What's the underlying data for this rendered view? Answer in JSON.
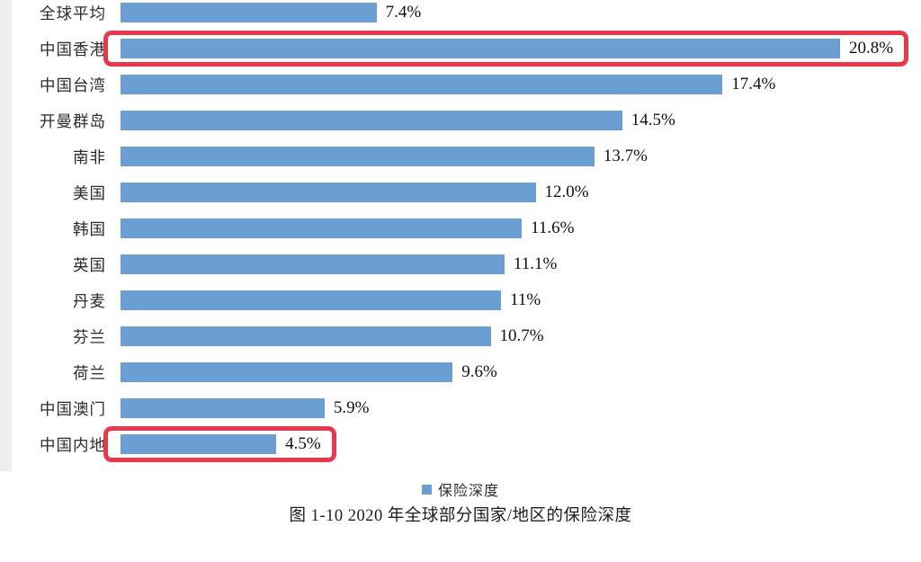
{
  "chart_data": {
    "type": "bar",
    "orientation": "horizontal",
    "title": "图 1-10 2020 年全球部分国家/地区的保险深度",
    "categories": [
      "全球平均",
      "中国香港",
      "中国台湾",
      "开曼群岛",
      "南非",
      "美国",
      "韩国",
      "英国",
      "丹麦",
      "芬兰",
      "荷兰",
      "中国澳门",
      "中国内地"
    ],
    "values": [
      7.4,
      20.8,
      17.4,
      14.5,
      13.7,
      12.0,
      11.6,
      11.1,
      11,
      10.7,
      9.6,
      5.9,
      4.5
    ],
    "value_labels": [
      "7.4%",
      "20.8%",
      "17.4%",
      "14.5%",
      "13.7%",
      "12.0%",
      "11.6%",
      "11.1%",
      "11%",
      "10.7%",
      "9.6%",
      "5.9%",
      "4.5%"
    ],
    "xlim": [
      0,
      20.8
    ],
    "grid": false,
    "legend": [
      "保险深度"
    ],
    "legend_position": "bottom",
    "highlighted_categories": [
      "中国香港",
      "中国内地"
    ],
    "bar_color": "#6b9fd3",
    "highlight_color": "#e9374b"
  }
}
